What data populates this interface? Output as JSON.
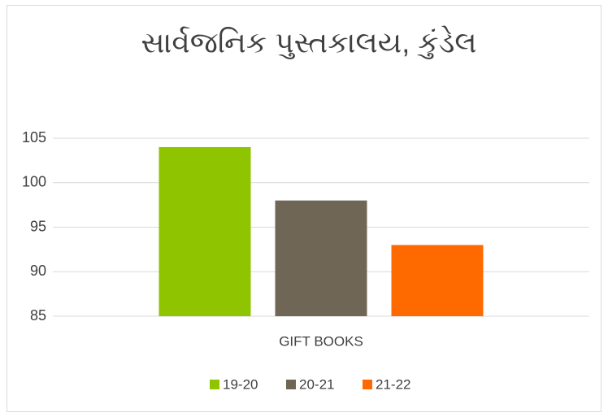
{
  "chart_data": {
    "type": "bar",
    "title": "સાર્વજનિક પુસ્તકાલય, કુંડેલ",
    "categories": [
      "GIFT BOOKS"
    ],
    "series": [
      {
        "name": "19-20",
        "color": "#8fc400",
        "values": [
          104
        ]
      },
      {
        "name": "20-21",
        "color": "#706656",
        "values": [
          98
        ]
      },
      {
        "name": "21-22",
        "color": "#ff6a00",
        "values": [
          93
        ]
      }
    ],
    "ylim": [
      85,
      105
    ],
    "yticks": [
      85,
      90,
      95,
      100,
      105
    ],
    "grid": true,
    "legend": "bottom"
  }
}
